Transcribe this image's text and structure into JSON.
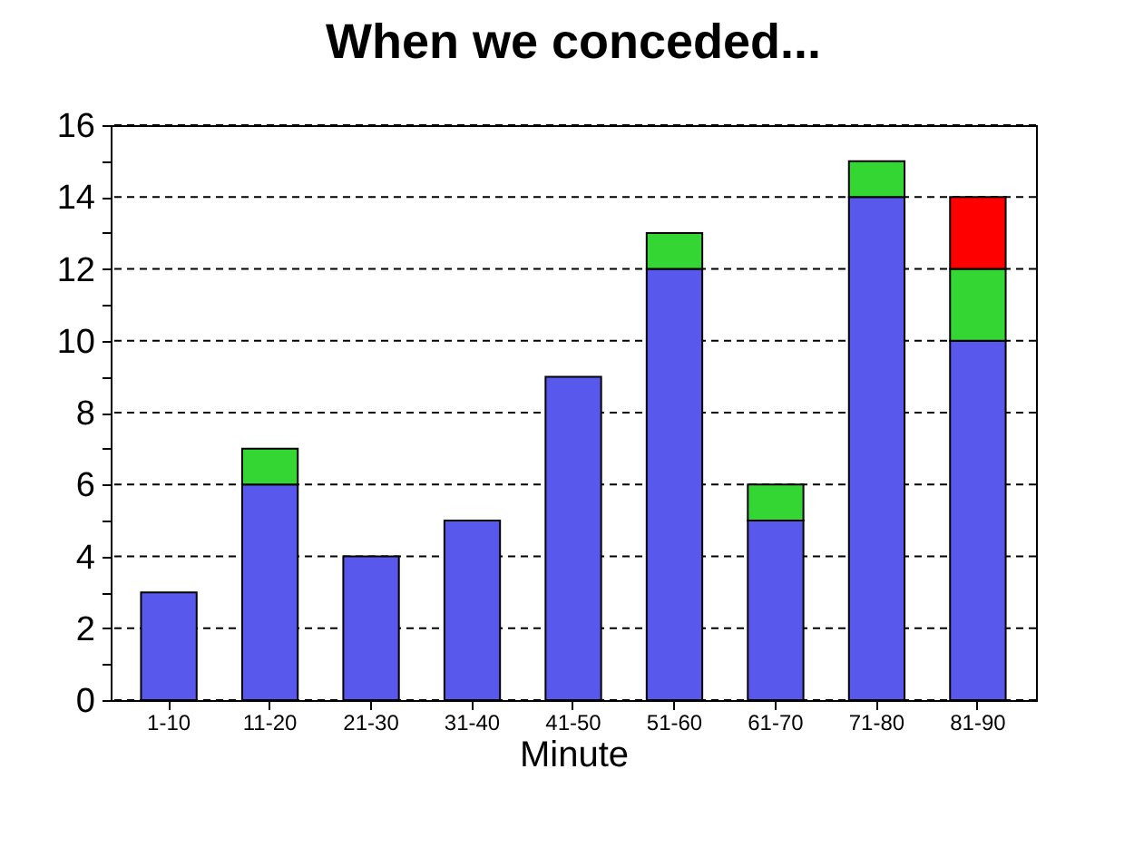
{
  "chart_data": {
    "type": "bar",
    "title": "When we conceded...",
    "xlabel": "Minute",
    "stacked": true,
    "grid": "y",
    "legend": false,
    "categories": [
      "1-10",
      "11-20",
      "21-30",
      "31-40",
      "41-50",
      "51-60",
      "61-70",
      "71-80",
      "81-90"
    ],
    "series": [
      {
        "color": "#5858ec",
        "values": [
          3,
          6,
          4,
          5,
          9,
          12,
          5,
          14,
          10
        ]
      },
      {
        "color": "#33d633",
        "values": [
          null,
          1,
          null,
          null,
          null,
          1,
          1,
          1,
          2
        ]
      },
      {
        "color": "#ff0000",
        "values": [
          null,
          null,
          null,
          null,
          null,
          null,
          null,
          null,
          2
        ]
      }
    ],
    "ylim": [
      0,
      16
    ],
    "yticks": [
      0,
      {
        "value": 1,
        "label": null
      },
      2,
      {
        "value": 3,
        "label": null
      },
      4,
      {
        "value": 5,
        "label": null
      },
      6,
      {
        "value": 7,
        "label": null
      },
      8,
      {
        "value": 9,
        "label": null
      },
      10,
      {
        "value": 11,
        "label": null
      },
      12,
      {
        "value": 13,
        "label": null
      },
      14,
      {
        "value": 15,
        "label": null
      },
      16
    ]
  }
}
